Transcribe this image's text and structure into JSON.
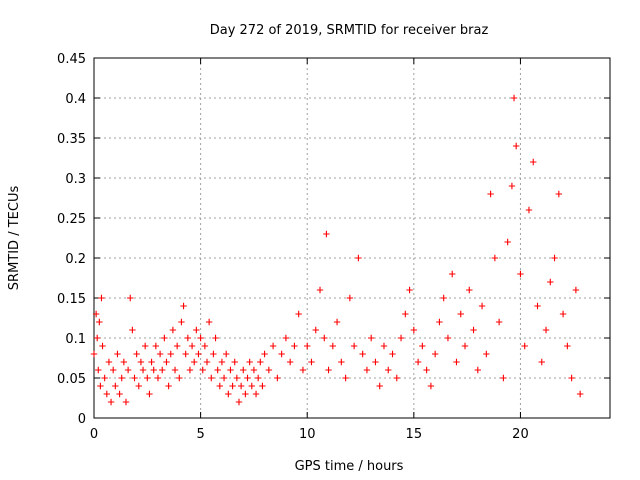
{
  "chart_data": {
    "type": "scatter",
    "title": "Day 272 of 2019, SRMTID for receiver braz",
    "xlabel": "GPS time / hours",
    "ylabel": "SRMTID / TECUs",
    "xlim": [
      0,
      24.2
    ],
    "ylim": [
      0,
      0.45
    ],
    "xticks": [
      0,
      5,
      10,
      15,
      20
    ],
    "xtick_labels": [
      "0",
      "5",
      "10",
      "15",
      "20"
    ],
    "yticks": [
      0,
      0.05,
      0.1,
      0.15,
      0.2,
      0.25,
      0.3,
      0.35,
      0.4,
      0.45
    ],
    "ytick_labels": [
      "0",
      "0.05",
      "0.1",
      "0.15",
      "0.2",
      "0.25",
      "0.3",
      "0.35",
      "0.4",
      "0.45"
    ],
    "grid": true,
    "marker": "+",
    "color": "#ff0000",
    "series": [
      {
        "name": "SRMTID",
        "points": [
          [
            0.0,
            0.08
          ],
          [
            0.1,
            0.13
          ],
          [
            0.15,
            0.1
          ],
          [
            0.2,
            0.06
          ],
          [
            0.25,
            0.12
          ],
          [
            0.3,
            0.04
          ],
          [
            0.35,
            0.15
          ],
          [
            0.4,
            0.09
          ],
          [
            0.5,
            0.05
          ],
          [
            0.6,
            0.03
          ],
          [
            0.7,
            0.07
          ],
          [
            0.8,
            0.02
          ],
          [
            0.9,
            0.06
          ],
          [
            1.0,
            0.04
          ],
          [
            1.1,
            0.08
          ],
          [
            1.2,
            0.03
          ],
          [
            1.3,
            0.05
          ],
          [
            1.4,
            0.07
          ],
          [
            1.5,
            0.02
          ],
          [
            1.6,
            0.06
          ],
          [
            1.7,
            0.15
          ],
          [
            1.8,
            0.11
          ],
          [
            1.9,
            0.05
          ],
          [
            2.0,
            0.08
          ],
          [
            2.1,
            0.04
          ],
          [
            2.2,
            0.07
          ],
          [
            2.3,
            0.06
          ],
          [
            2.4,
            0.09
          ],
          [
            2.5,
            0.05
          ],
          [
            2.6,
            0.03
          ],
          [
            2.7,
            0.07
          ],
          [
            2.8,
            0.06
          ],
          [
            2.9,
            0.09
          ],
          [
            3.0,
            0.05
          ],
          [
            3.1,
            0.08
          ],
          [
            3.2,
            0.06
          ],
          [
            3.3,
            0.1
          ],
          [
            3.4,
            0.07
          ],
          [
            3.5,
            0.04
          ],
          [
            3.6,
            0.08
          ],
          [
            3.7,
            0.11
          ],
          [
            3.8,
            0.06
          ],
          [
            3.9,
            0.09
          ],
          [
            4.0,
            0.05
          ],
          [
            4.1,
            0.12
          ],
          [
            4.2,
            0.14
          ],
          [
            4.3,
            0.08
          ],
          [
            4.4,
            0.1
          ],
          [
            4.5,
            0.06
          ],
          [
            4.6,
            0.09
          ],
          [
            4.7,
            0.07
          ],
          [
            4.8,
            0.11
          ],
          [
            4.9,
            0.08
          ],
          [
            5.0,
            0.1
          ],
          [
            5.1,
            0.06
          ],
          [
            5.2,
            0.09
          ],
          [
            5.3,
            0.07
          ],
          [
            5.4,
            0.12
          ],
          [
            5.5,
            0.05
          ],
          [
            5.6,
            0.08
          ],
          [
            5.7,
            0.1
          ],
          [
            5.8,
            0.06
          ],
          [
            5.9,
            0.04
          ],
          [
            6.0,
            0.07
          ],
          [
            6.1,
            0.05
          ],
          [
            6.2,
            0.08
          ],
          [
            6.3,
            0.03
          ],
          [
            6.4,
            0.06
          ],
          [
            6.5,
            0.04
          ],
          [
            6.6,
            0.07
          ],
          [
            6.7,
            0.05
          ],
          [
            6.8,
            0.02
          ],
          [
            6.9,
            0.04
          ],
          [
            7.0,
            0.06
          ],
          [
            7.1,
            0.03
          ],
          [
            7.2,
            0.05
          ],
          [
            7.3,
            0.07
          ],
          [
            7.4,
            0.04
          ],
          [
            7.5,
            0.06
          ],
          [
            7.6,
            0.03
          ],
          [
            7.7,
            0.05
          ],
          [
            7.8,
            0.07
          ],
          [
            7.9,
            0.04
          ],
          [
            8.0,
            0.08
          ],
          [
            8.2,
            0.06
          ],
          [
            8.4,
            0.09
          ],
          [
            8.6,
            0.05
          ],
          [
            8.8,
            0.08
          ],
          [
            9.0,
            0.1
          ],
          [
            9.2,
            0.07
          ],
          [
            9.4,
            0.09
          ],
          [
            9.6,
            0.13
          ],
          [
            9.8,
            0.06
          ],
          [
            10.0,
            0.09
          ],
          [
            10.2,
            0.07
          ],
          [
            10.4,
            0.11
          ],
          [
            10.6,
            0.16
          ],
          [
            10.8,
            0.1
          ],
          [
            10.9,
            0.23
          ],
          [
            11.0,
            0.06
          ],
          [
            11.2,
            0.09
          ],
          [
            11.4,
            0.12
          ],
          [
            11.6,
            0.07
          ],
          [
            11.8,
            0.05
          ],
          [
            12.0,
            0.15
          ],
          [
            12.2,
            0.09
          ],
          [
            12.4,
            0.2
          ],
          [
            12.6,
            0.08
          ],
          [
            12.8,
            0.06
          ],
          [
            13.0,
            0.1
          ],
          [
            13.2,
            0.07
          ],
          [
            13.4,
            0.04
          ],
          [
            13.6,
            0.09
          ],
          [
            13.8,
            0.06
          ],
          [
            14.0,
            0.08
          ],
          [
            14.2,
            0.05
          ],
          [
            14.4,
            0.1
          ],
          [
            14.6,
            0.13
          ],
          [
            14.8,
            0.16
          ],
          [
            15.0,
            0.11
          ],
          [
            15.2,
            0.07
          ],
          [
            15.4,
            0.09
          ],
          [
            15.6,
            0.06
          ],
          [
            15.8,
            0.04
          ],
          [
            16.0,
            0.08
          ],
          [
            16.2,
            0.12
          ],
          [
            16.4,
            0.15
          ],
          [
            16.6,
            0.1
          ],
          [
            16.8,
            0.18
          ],
          [
            17.0,
            0.07
          ],
          [
            17.2,
            0.13
          ],
          [
            17.4,
            0.09
          ],
          [
            17.6,
            0.16
          ],
          [
            17.8,
            0.11
          ],
          [
            18.0,
            0.06
          ],
          [
            18.2,
            0.14
          ],
          [
            18.4,
            0.08
          ],
          [
            18.6,
            0.28
          ],
          [
            18.8,
            0.2
          ],
          [
            19.0,
            0.12
          ],
          [
            19.2,
            0.05
          ],
          [
            19.4,
            0.22
          ],
          [
            19.6,
            0.29
          ],
          [
            19.7,
            0.4
          ],
          [
            19.8,
            0.34
          ],
          [
            20.0,
            0.18
          ],
          [
            20.2,
            0.09
          ],
          [
            20.4,
            0.26
          ],
          [
            20.6,
            0.32
          ],
          [
            20.8,
            0.14
          ],
          [
            21.0,
            0.07
          ],
          [
            21.2,
            0.11
          ],
          [
            21.4,
            0.17
          ],
          [
            21.6,
            0.2
          ],
          [
            21.8,
            0.28
          ],
          [
            22.0,
            0.13
          ],
          [
            22.2,
            0.09
          ],
          [
            22.4,
            0.05
          ],
          [
            22.6,
            0.16
          ],
          [
            22.8,
            0.03
          ]
        ]
      }
    ]
  }
}
